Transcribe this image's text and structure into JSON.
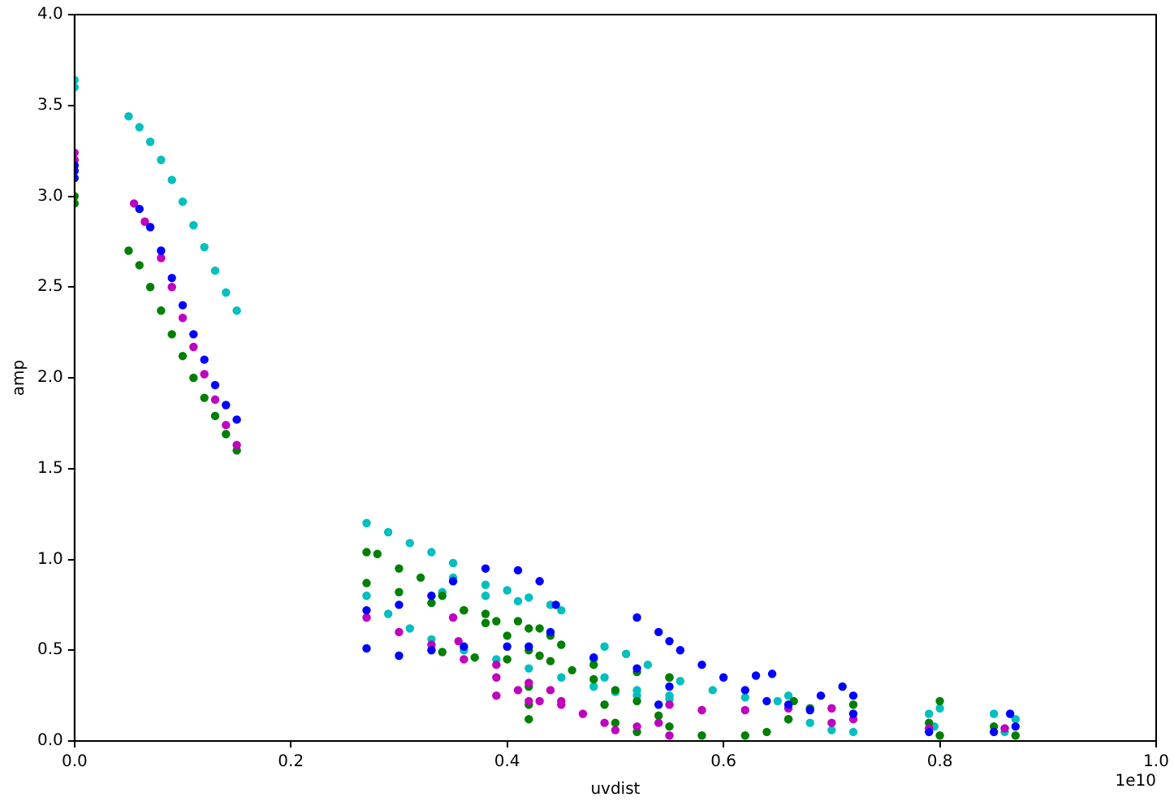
{
  "chart_data": {
    "type": "scatter",
    "xlabel": "uvdist",
    "ylabel": "amp",
    "marker": "circle",
    "grid": false,
    "legend": false,
    "xlim": [
      0,
      1
    ],
    "ylim": [
      0,
      4
    ],
    "xticks": [
      {
        "value": 0,
        "label": "0.0"
      },
      0.2,
      0.4,
      0.6,
      0.8,
      {
        "value": 1,
        "label": "1.0"
      }
    ],
    "yticks": [
      {
        "value": 0,
        "label": "0.0"
      },
      0.5,
      {
        "value": 1,
        "label": "1.0"
      },
      1.5,
      {
        "value": 2,
        "label": "2.0"
      },
      2.5,
      {
        "value": 3,
        "label": "3.0"
      },
      3.5,
      {
        "value": 4,
        "label": "4.0"
      }
    ],
    "annotations": [
      "1e10"
    ],
    "series": [
      {
        "color": "#0000ff",
        "x": [
          0,
          0,
          0,
          0.06,
          0.07,
          0.08,
          0.09,
          0.1,
          0.11,
          0.12,
          0.13,
          0.14,
          0.15,
          0.27,
          0.3,
          0.33,
          0.36,
          0.27,
          0.3,
          0.33,
          0.35,
          0.38,
          0.41,
          0.43,
          0.445,
          0.44,
          0.42,
          0.4,
          0.48,
          0.52,
          0.55,
          0.54,
          0.52,
          0.54,
          0.55,
          0.56,
          0.58,
          0.6,
          0.62,
          0.64,
          0.66,
          0.68,
          0.63,
          0.645,
          0.69,
          0.71,
          0.72,
          0.72,
          0.79,
          0.85,
          0.865,
          0.87
        ],
        "values": [
          3.1,
          3.14,
          3.17,
          2.93,
          2.83,
          2.7,
          2.55,
          2.4,
          2.24,
          2.1,
          1.96,
          1.85,
          1.77,
          0.51,
          0.47,
          0.5,
          0.52,
          0.72,
          0.75,
          0.8,
          0.88,
          0.95,
          0.94,
          0.88,
          0.75,
          0.6,
          0.52,
          0.52,
          0.46,
          0.4,
          0.3,
          0.2,
          0.68,
          0.6,
          0.55,
          0.5,
          0.42,
          0.35,
          0.28,
          0.22,
          0.2,
          0.17,
          0.36,
          0.37,
          0.25,
          0.3,
          0.25,
          0.15,
          0.05,
          0.05,
          0.15,
          0.08
        ]
      },
      {
        "color": "#bf00bf",
        "x": [
          0,
          0,
          0.055,
          0.065,
          0.08,
          0.09,
          0.1,
          0.11,
          0.12,
          0.13,
          0.14,
          0.15,
          0.27,
          0.3,
          0.33,
          0.36,
          0.39,
          0.41,
          0.43,
          0.45,
          0.47,
          0.49,
          0.5,
          0.52,
          0.54,
          0.55,
          0.35,
          0.355,
          0.39,
          0.42,
          0.44,
          0.45,
          0.42,
          0.39,
          0.55,
          0.58,
          0.62,
          0.66,
          0.7,
          0.72,
          0.7,
          0.79,
          0.86
        ],
        "values": [
          3.2,
          3.24,
          2.96,
          2.86,
          2.66,
          2.5,
          2.33,
          2.17,
          2.02,
          1.88,
          1.74,
          1.63,
          0.68,
          0.6,
          0.53,
          0.45,
          0.35,
          0.28,
          0.22,
          0.2,
          0.15,
          0.1,
          0.06,
          0.08,
          0.1,
          0.03,
          0.68,
          0.55,
          0.42,
          0.32,
          0.28,
          0.22,
          0.22,
          0.25,
          0.2,
          0.17,
          0.17,
          0.18,
          0.18,
          0.12,
          0.1,
          0.07,
          0.07
        ]
      },
      {
        "color": "#008000",
        "x": [
          0,
          0,
          0.05,
          0.06,
          0.07,
          0.08,
          0.09,
          0.1,
          0.11,
          0.12,
          0.13,
          0.14,
          0.15,
          0.27,
          0.28,
          0.3,
          0.32,
          0.34,
          0.36,
          0.38,
          0.4,
          0.42,
          0.44,
          0.46,
          0.48,
          0.5,
          0.52,
          0.54,
          0.55,
          0.27,
          0.3,
          0.33,
          0.36,
          0.39,
          0.42,
          0.44,
          0.45,
          0.43,
          0.4,
          0.37,
          0.34,
          0.38,
          0.41,
          0.43,
          0.42,
          0.42,
          0.42,
          0.48,
          0.52,
          0.55,
          0.49,
          0.5,
          0.52,
          0.58,
          0.62,
          0.64,
          0.66,
          0.665,
          0.68,
          0.72,
          0.79,
          0.8,
          0.8,
          0.85,
          0.87
        ],
        "values": [
          2.96,
          3.0,
          2.7,
          2.62,
          2.5,
          2.37,
          2.24,
          2.12,
          2.0,
          1.89,
          1.79,
          1.69,
          1.6,
          1.04,
          1.03,
          0.95,
          0.9,
          0.8,
          0.72,
          0.65,
          0.58,
          0.5,
          0.44,
          0.39,
          0.34,
          0.28,
          0.22,
          0.14,
          0.08,
          0.87,
          0.82,
          0.76,
          0.72,
          0.66,
          0.62,
          0.58,
          0.53,
          0.47,
          0.45,
          0.46,
          0.49,
          0.7,
          0.66,
          0.62,
          0.3,
          0.2,
          0.12,
          0.42,
          0.38,
          0.35,
          0.2,
          0.1,
          0.05,
          0.03,
          0.03,
          0.05,
          0.12,
          0.22,
          0.18,
          0.2,
          0.1,
          0.22,
          0.03,
          0.08,
          0.03
        ]
      },
      {
        "color": "#00bfbf",
        "x": [
          0,
          0,
          0.05,
          0.06,
          0.07,
          0.08,
          0.09,
          0.1,
          0.11,
          0.12,
          0.13,
          0.14,
          0.15,
          0.27,
          0.29,
          0.31,
          0.33,
          0.35,
          0.35,
          0.34,
          0.27,
          0.29,
          0.31,
          0.33,
          0.36,
          0.39,
          0.42,
          0.45,
          0.48,
          0.5,
          0.52,
          0.55,
          0.38,
          0.4,
          0.42,
          0.44,
          0.45,
          0.38,
          0.41,
          0.48,
          0.49,
          0.51,
          0.53,
          0.55,
          0.55,
          0.52,
          0.49,
          0.56,
          0.59,
          0.62,
          0.65,
          0.66,
          0.66,
          0.68,
          0.7,
          0.72,
          0.79,
          0.8,
          0.795,
          0.85,
          0.87,
          0.86
        ],
        "values": [
          3.6,
          3.64,
          3.44,
          3.38,
          3.3,
          3.2,
          3.09,
          2.97,
          2.84,
          2.72,
          2.59,
          2.47,
          2.37,
          1.2,
          1.15,
          1.09,
          1.04,
          0.98,
          0.9,
          0.82,
          0.8,
          0.7,
          0.62,
          0.56,
          0.5,
          0.45,
          0.4,
          0.35,
          0.3,
          0.27,
          0.25,
          0.23,
          0.86,
          0.83,
          0.79,
          0.75,
          0.72,
          0.8,
          0.77,
          0.45,
          0.52,
          0.48,
          0.42,
          0.35,
          0.25,
          0.28,
          0.35,
          0.33,
          0.28,
          0.24,
          0.22,
          0.25,
          0.12,
          0.1,
          0.06,
          0.05,
          0.15,
          0.18,
          0.08,
          0.15,
          0.12,
          0.05
        ]
      }
    ]
  }
}
